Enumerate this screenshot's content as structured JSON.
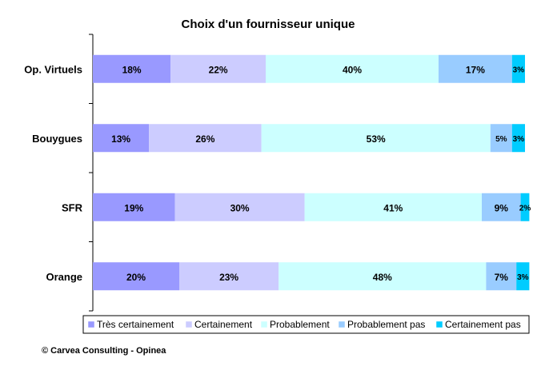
{
  "chart_data": {
    "type": "bar",
    "orientation": "horizontal",
    "stacked": true,
    "title": "Choix d'un fournisseur unique",
    "categories": [
      "Op. Virtuels",
      "Bouygues",
      "SFR",
      "Orange"
    ],
    "series": [
      {
        "name": "Très certainement",
        "color": "#9999ff",
        "values": [
          18,
          13,
          19,
          20
        ],
        "labels": [
          "18%",
          "13%",
          "19%",
          "20%"
        ]
      },
      {
        "name": "Certainement",
        "color": "#ccccff",
        "values": [
          22,
          26,
          30,
          23
        ],
        "labels": [
          "22%",
          "26%",
          "30%",
          "23%"
        ]
      },
      {
        "name": "Probablement",
        "color": "#ccffff",
        "values": [
          40,
          53,
          41,
          48
        ],
        "labels": [
          "40%",
          "53%",
          "41%",
          "48%"
        ]
      },
      {
        "name": "Probablement pas",
        "color": "#99ccff",
        "values": [
          17,
          5,
          9,
          7
        ],
        "labels": [
          "17%",
          "5%",
          "9%",
          "7%"
        ]
      },
      {
        "name": "Certainement pas",
        "color": "#00ccff",
        "values": [
          3,
          3,
          2,
          3
        ],
        "labels": [
          "3%",
          "3%",
          "2%",
          "3%"
        ]
      }
    ],
    "xlim": [
      0,
      100
    ],
    "grid": false,
    "legend_position": "bottom"
  },
  "footer": {
    "copyright": "© Carvea Consulting - Opinea"
  }
}
